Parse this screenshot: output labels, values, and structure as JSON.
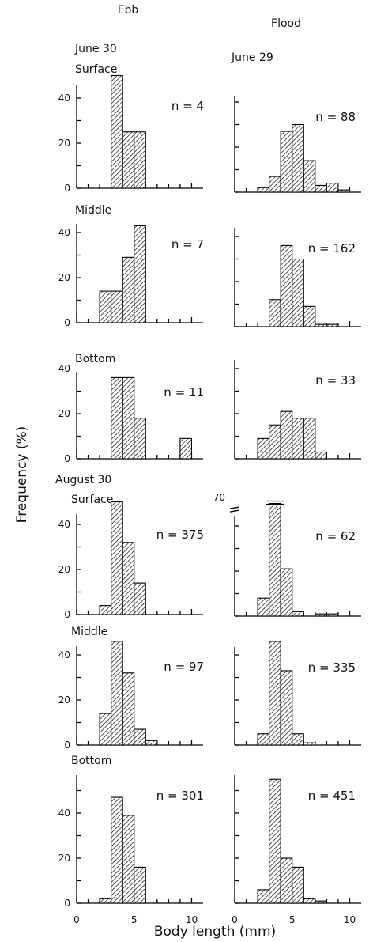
{
  "column_headers": [
    "Ebb",
    "Flood"
  ],
  "dates": {
    "june_ebb": "June 30",
    "june_flood": "June 29",
    "august": "August 30"
  },
  "depths": [
    "Surface",
    "Middle",
    "Bottom"
  ],
  "y_axis_title": "Frequency (%)",
  "x_axis_title": "Body length (mm)",
  "y_ticks": [
    "0",
    "20",
    "40"
  ],
  "x_ticks": [
    "0",
    "5",
    "10"
  ],
  "break_label": "70",
  "chart_data": [
    {
      "type": "bar",
      "column": "Ebb",
      "date": "June 30",
      "depth": "Surface",
      "n_label": "n = 4",
      "x": [
        3.5,
        4.5,
        5.5
      ],
      "values": [
        50,
        25,
        25
      ],
      "bin_width": 1,
      "xlim": [
        0,
        11
      ],
      "ylim": [
        0,
        52
      ]
    },
    {
      "type": "bar",
      "column": "Flood",
      "date": "June 29",
      "depth": "Surface",
      "n_label": "n = 88",
      "x": [
        2.5,
        3.5,
        4.5,
        5.5,
        6.5,
        7.5,
        8.5,
        9.5
      ],
      "values": [
        2,
        7,
        27,
        30,
        14,
        3,
        4,
        1
      ],
      "bin_width": 1,
      "xlim": [
        0,
        11
      ],
      "ylim": [
        0,
        52
      ]
    },
    {
      "type": "bar",
      "column": "Ebb",
      "date": "June 30",
      "depth": "Middle",
      "n_label": "n = 7",
      "x": [
        2.5,
        3.5,
        4.5,
        5.5
      ],
      "values": [
        14,
        14,
        29,
        43
      ],
      "bin_width": 1,
      "xlim": [
        0,
        11
      ],
      "ylim": [
        0,
        52
      ]
    },
    {
      "type": "bar",
      "column": "Flood",
      "date": "June 29",
      "depth": "Middle",
      "n_label": "n = 162",
      "x": [
        3.5,
        4.5,
        5.5,
        6.5,
        7.5,
        8.5
      ],
      "values": [
        12,
        36,
        30,
        9,
        1,
        1
      ],
      "bin_width": 1,
      "xlim": [
        0,
        11
      ],
      "ylim": [
        0,
        52
      ]
    },
    {
      "type": "bar",
      "column": "Ebb",
      "date": "June 30",
      "depth": "Bottom",
      "n_label": "n = 11",
      "x": [
        3.5,
        4.5,
        5.5,
        9.5
      ],
      "values": [
        36,
        36,
        18,
        9
      ],
      "bin_width": 1,
      "xlim": [
        0,
        11
      ],
      "ylim": [
        0,
        52
      ]
    },
    {
      "type": "bar",
      "column": "Flood",
      "date": "June 29",
      "depth": "Bottom",
      "n_label": "n = 33",
      "x": [
        2.5,
        3.5,
        4.5,
        5.5,
        6.5,
        7.5
      ],
      "values": [
        9,
        15,
        21,
        18,
        18,
        3
      ],
      "bin_width": 1,
      "xlim": [
        0,
        11
      ],
      "ylim": [
        0,
        52
      ]
    },
    {
      "type": "bar",
      "column": "Ebb",
      "date": "August 30",
      "depth": "Surface",
      "n_label": "n = 375",
      "x": [
        2.5,
        3.5,
        4.5,
        5.5
      ],
      "values": [
        4,
        50,
        32,
        14
      ],
      "bin_width": 1,
      "xlim": [
        0,
        11
      ],
      "ylim": [
        0,
        52
      ]
    },
    {
      "type": "bar",
      "column": "Flood",
      "date": "August 30",
      "depth": "Surface",
      "n_label": "n = 62",
      "x": [
        2.5,
        3.5,
        4.5,
        5.5,
        7.5,
        8.5
      ],
      "values": [
        8,
        70,
        21,
        2,
        1,
        1
      ],
      "bin_width": 1,
      "xlim": [
        0,
        11
      ],
      "ylim": [
        0,
        52
      ],
      "axis_break": true
    },
    {
      "type": "bar",
      "column": "Ebb",
      "date": "August 30",
      "depth": "Middle",
      "n_label": "n = 97",
      "x": [
        2.5,
        3.5,
        4.5,
        5.5,
        6.5
      ],
      "values": [
        14,
        46,
        32,
        7,
        2
      ],
      "bin_width": 1,
      "xlim": [
        0,
        11
      ],
      "ylim": [
        0,
        52
      ]
    },
    {
      "type": "bar",
      "column": "Flood",
      "date": "August 30",
      "depth": "Middle",
      "n_label": "n = 335",
      "x": [
        2.5,
        3.5,
        4.5,
        5.5,
        6.5
      ],
      "values": [
        5,
        46,
        33,
        5,
        1
      ],
      "bin_width": 1,
      "xlim": [
        0,
        11
      ],
      "ylim": [
        0,
        52
      ]
    },
    {
      "type": "bar",
      "column": "Ebb",
      "date": "August 30",
      "depth": "Bottom",
      "n_label": "n = 301",
      "x": [
        2.5,
        3.5,
        4.5,
        5.5
      ],
      "values": [
        2,
        47,
        39,
        16
      ],
      "bin_width": 1,
      "xlim": [
        0,
        11
      ],
      "ylim": [
        0,
        52
      ]
    },
    {
      "type": "bar",
      "column": "Flood",
      "date": "August 30",
      "depth": "Bottom",
      "n_label": "n = 451",
      "x": [
        2.5,
        3.5,
        4.5,
        5.5,
        6.5,
        7.5
      ],
      "values": [
        6,
        55,
        20,
        16,
        2,
        1
      ],
      "bin_width": 1,
      "xlim": [
        0,
        11
      ],
      "ylim": [
        0,
        52
      ]
    }
  ]
}
